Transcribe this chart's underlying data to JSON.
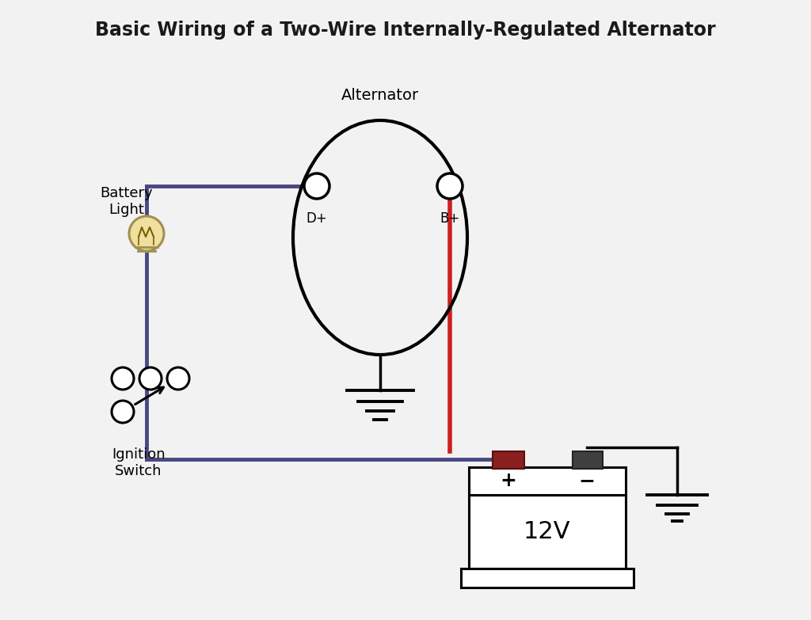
{
  "title": "Basic Wiring of a Two-Wire Internally-Regulated Alternator",
  "bg_color": "#f2f2f2",
  "wire_blue": "#4a4882",
  "wire_red": "#cc2020",
  "wire_black": "#111111",
  "alt_label": "Alternator",
  "dp_label": "D+",
  "bp_label": "B+",
  "battery_label": "12V",
  "ignition_label": "Ignition\nSwitch",
  "battery_light_label": "Battery\nLight"
}
